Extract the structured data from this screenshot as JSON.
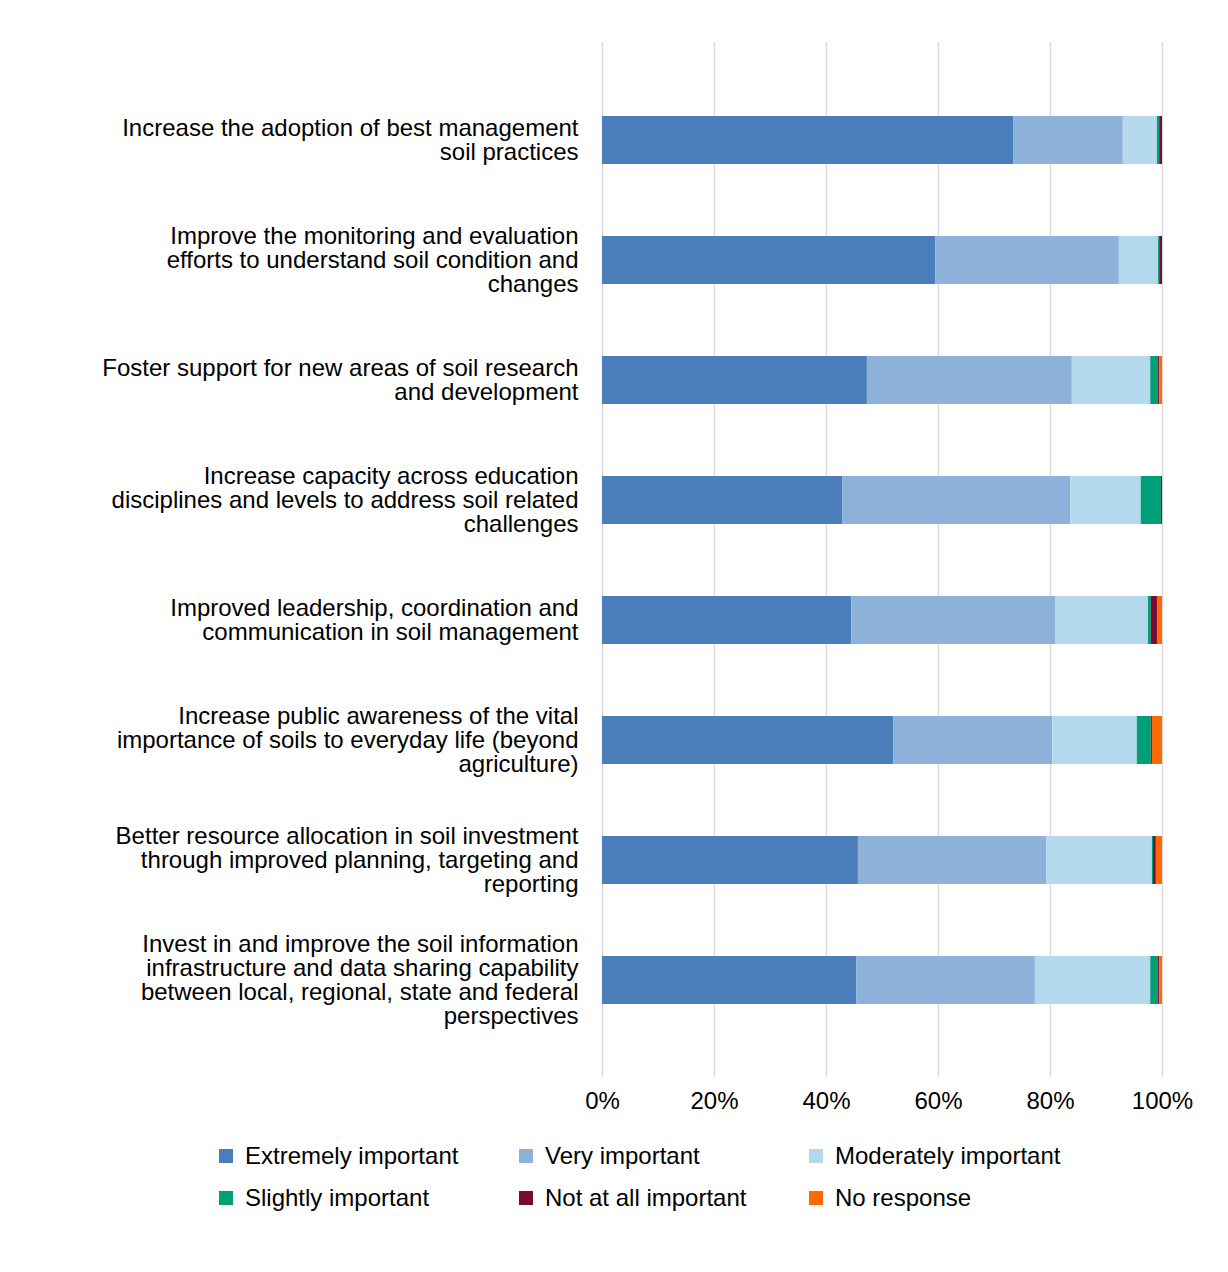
{
  "chart_data": {
    "type": "bar",
    "orientation": "horizontal",
    "stacked": true,
    "grid": true,
    "legend": "bottom",
    "categories": [
      "Increase the adoption of best management soil practices",
      "Improve the monitoring and evaluation efforts to understand soil condition and changes",
      "Foster support for new areas of soil research and development",
      "Increase capacity across education disciplines and levels to address soil related challenges",
      "Improved leadership, coordination and communication in soil management",
      "Increase public awareness of the vital importance of soils to everyday life (beyond agriculture)",
      "Better resource allocation in soil investment through improved planning, targeting and reporting",
      "Invest in and improve the soil information infrastructure and data sharing capability between local, regional, state and federal perspectives"
    ],
    "series": [
      {
        "name": "Extremely important",
        "color": "#4a7ebb",
        "values": [
          73.4,
          59.5,
          47.3,
          42.9,
          44.5,
          52.0,
          45.7,
          45.4
        ]
      },
      {
        "name": "Very important",
        "color": "#8eb1d9",
        "values": [
          19.6,
          32.8,
          36.6,
          40.7,
          36.4,
          28.4,
          33.6,
          31.9
        ]
      },
      {
        "name": "Moderately important",
        "color": "#b5d9ec",
        "values": [
          6.1,
          7.0,
          14.0,
          12.6,
          16.6,
          15.1,
          18.9,
          20.6
        ]
      },
      {
        "name": "Slightly important",
        "color": "#00a077",
        "values": [
          0.4,
          0.2,
          1.4,
          3.6,
          0.5,
          2.5,
          0.2,
          1.4
        ]
      },
      {
        "name": "Not at all important",
        "color": "#7b0a32",
        "values": [
          0.5,
          0.5,
          0.2,
          0.2,
          1.1,
          0.2,
          0.5,
          0.2
        ]
      },
      {
        "name": "No response",
        "color": "#ff6a00",
        "values": [
          0.0,
          0.0,
          0.5,
          0.0,
          0.9,
          1.8,
          1.1,
          0.5
        ]
      }
    ],
    "xlim": [
      0,
      100
    ],
    "xticks": [
      {
        "value": 0,
        "label": "0%"
      },
      {
        "value": 20,
        "label": "20%"
      },
      {
        "value": 40,
        "label": "40%"
      },
      {
        "value": 60,
        "label": "60%"
      },
      {
        "value": 80,
        "label": "80%"
      },
      {
        "value": 100,
        "label": "100%"
      }
    ]
  }
}
